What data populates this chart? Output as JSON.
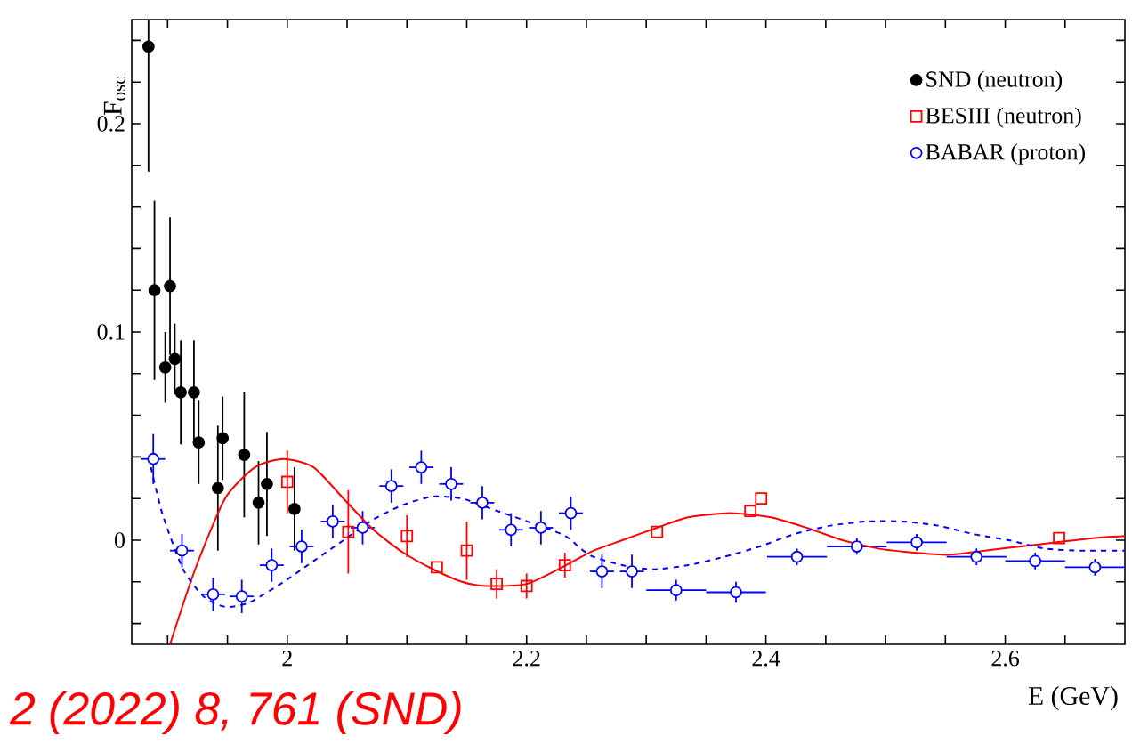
{
  "chart_data": {
    "type": "scatter",
    "xlabel": "E (GeV)",
    "ylabel": "F$_{osc}$",
    "xlim": [
      1.87,
      2.7
    ],
    "ylim": [
      -0.05,
      0.25
    ],
    "xticks": [
      {
        "value": 1.9,
        "label": null
      },
      {
        "value": 1.95,
        "label": null
      },
      2,
      {
        "value": 2.05,
        "label": null
      },
      {
        "value": 2.1,
        "label": null
      },
      {
        "value": 2.15,
        "label": null
      },
      2.2,
      {
        "value": 2.25,
        "label": null
      },
      {
        "value": 2.3,
        "label": null
      },
      {
        "value": 2.35,
        "label": null
      },
      2.4,
      {
        "value": 2.45,
        "label": null
      },
      {
        "value": 2.5,
        "label": null
      },
      {
        "value": 2.55,
        "label": null
      },
      2.6,
      {
        "value": 2.65,
        "label": null
      }
    ],
    "yticks": [
      {
        "value": -0.04,
        "label": null
      },
      {
        "value": -0.02,
        "label": null
      },
      0,
      {
        "value": 0.02,
        "label": null
      },
      {
        "value": 0.04,
        "label": null
      },
      {
        "value": 0.06,
        "label": null
      },
      {
        "value": 0.08,
        "label": null
      },
      0.1,
      {
        "value": 0.12,
        "label": null
      },
      {
        "value": 0.14,
        "label": null
      },
      {
        "value": 0.16,
        "label": null
      },
      {
        "value": 0.18,
        "label": null
      },
      0.2,
      {
        "value": 0.22,
        "label": null
      },
      {
        "value": 0.24,
        "label": null
      }
    ],
    "legend": "top right",
    "grid": false,
    "annotations": [
      "2 (2022) 8, 761 (SND)"
    ],
    "series": [
      {
        "name": "SND (neutron)",
        "color": "#000000",
        "marker": "circle",
        "x": [
          1.884,
          1.889,
          1.902,
          1.906,
          1.898,
          1.911,
          1.922,
          1.926,
          1.946,
          1.942,
          1.964,
          1.976,
          1.983,
          2.006
        ],
        "values": [
          0.237,
          0.12,
          0.122,
          0.087,
          0.083,
          0.071,
          0.071,
          0.047,
          0.049,
          0.025,
          0.041,
          0.018,
          0.027,
          0.015
        ],
        "errors": [
          0.06,
          0.043,
          0.033,
          0.017,
          0.017,
          0.025,
          0.025,
          0.02,
          0.02,
          0.03,
          0.03,
          0.02,
          0.025,
          0.02
        ]
      },
      {
        "name": "BESIII (neutron)",
        "color": "#ff0000",
        "marker": "square",
        "x": [
          2.0,
          2.051,
          2.1,
          2.125,
          2.15,
          2.175,
          2.2,
          2.232,
          2.309,
          2.387,
          2.396,
          2.645
        ],
        "values": [
          0.028,
          0.004,
          0.002,
          -0.013,
          -0.005,
          -0.021,
          -0.022,
          -0.012,
          0.004,
          0.014,
          0.02,
          0.001
        ],
        "errors": [
          0.015,
          0.02,
          0.01,
          null,
          0.014,
          0.007,
          0.006,
          0.006,
          null,
          null,
          null,
          null
        ]
      },
      {
        "name": "BABAR (proton)",
        "color": "#0000ff",
        "marker": "circle",
        "x": [
          1.888,
          1.912,
          1.938,
          1.962,
          1.987,
          2.012,
          2.038,
          2.063,
          2.087,
          2.112,
          2.137,
          2.163,
          2.187,
          2.212,
          2.237,
          2.263,
          2.288,
          2.325,
          2.375,
          2.426,
          2.476,
          2.526,
          2.576,
          2.625,
          2.675
        ],
        "values": [
          0.039,
          -0.005,
          -0.026,
          -0.027,
          -0.012,
          -0.003,
          0.009,
          0.006,
          0.026,
          0.035,
          0.027,
          0.018,
          0.005,
          0.006,
          0.013,
          -0.015,
          -0.015,
          -0.024,
          -0.025,
          -0.008,
          -0.003,
          -0.001,
          -0.008,
          -0.01,
          -0.013
        ],
        "errors": [
          0.012,
          0.008,
          0.008,
          0.008,
          0.008,
          0.008,
          0.008,
          0.008,
          0.008,
          0.008,
          0.008,
          0.008,
          0.008,
          0.008,
          0.008,
          0.008,
          0.008,
          0.005,
          0.005,
          0.004,
          0.004,
          0.004,
          0.004,
          0.004,
          0.004
        ],
        "xerrors": [
          0.01,
          0.01,
          0.01,
          0.01,
          0.01,
          0.01,
          0.01,
          0.01,
          0.01,
          0.01,
          0.01,
          0.01,
          0.01,
          0.01,
          0.01,
          0.01,
          0.01,
          0.025,
          0.025,
          0.025,
          0.025,
          0.025,
          0.025,
          0.025,
          0.025
        ]
      },
      {
        "type": "line",
        "color": "#ff0000",
        "line_style": "solid",
        "marker": "none",
        "x": [
          1.902,
          1.923,
          1.948,
          1.973,
          1.997,
          2.022,
          2.047,
          2.072,
          2.097,
          2.122,
          2.146,
          2.166,
          2.2,
          2.233,
          2.256,
          2.28,
          2.309,
          2.335,
          2.37,
          2.404,
          2.434,
          2.464,
          2.494,
          2.524,
          2.553,
          2.583,
          2.613,
          2.643,
          2.673,
          2.7
        ],
        "values": [
          -0.05,
          -0.014,
          0.02,
          0.035,
          0.039,
          0.035,
          0.02,
          0.005,
          -0.006,
          -0.014,
          -0.02,
          -0.022,
          -0.021,
          -0.012,
          -0.005,
          0.0,
          0.006,
          0.011,
          0.013,
          0.011,
          0.006,
          0.0,
          -0.004,
          -0.006,
          -0.007,
          -0.005,
          -0.003,
          -0.001,
          0.001,
          0.002
        ]
      },
      {
        "type": "line",
        "color": "#0000ff",
        "line_style": "dashed",
        "marker": "none",
        "x": [
          1.886,
          1.896,
          1.913,
          1.93,
          1.948,
          1.968,
          1.997,
          2.022,
          2.047,
          2.072,
          2.097,
          2.122,
          2.146,
          2.166,
          2.229,
          2.245,
          2.256,
          2.28,
          2.305,
          2.335,
          2.365,
          2.395,
          2.424,
          2.454,
          2.484,
          2.514,
          2.544,
          2.573,
          2.603,
          2.633,
          2.663,
          2.7
        ],
        "values": [
          0.035,
          0.012,
          -0.014,
          -0.027,
          -0.032,
          -0.03,
          -0.02,
          -0.01,
          0.0,
          0.01,
          0.017,
          0.021,
          0.02,
          0.016,
          0.003,
          -0.004,
          -0.008,
          -0.012,
          -0.014,
          -0.012,
          -0.008,
          -0.003,
          0.003,
          0.007,
          0.009,
          0.009,
          0.007,
          0.003,
          0.0,
          -0.004,
          -0.005,
          -0.005
        ]
      }
    ]
  }
}
